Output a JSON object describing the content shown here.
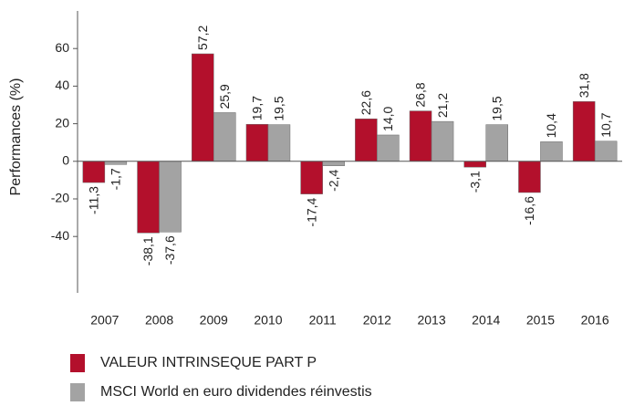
{
  "chart_data": {
    "type": "bar",
    "ylabel": "Performances (%)",
    "categories": [
      "2007",
      "2008",
      "2009",
      "2010",
      "2011",
      "2012",
      "2013",
      "2014",
      "2015",
      "2016"
    ],
    "series": [
      {
        "name": "VALEUR INTRINSEQUE  PART P",
        "color": "#b3102c",
        "values": [
          -11.3,
          -38.1,
          57.2,
          19.7,
          -17.4,
          22.6,
          26.8,
          -3.1,
          -16.6,
          31.8
        ],
        "value_labels": [
          "-11,3",
          "-38,1",
          "57,2",
          "19,7",
          "-17,4",
          "22,6",
          "26,8",
          "-3,1",
          "-16,6",
          "31,8"
        ]
      },
      {
        "name": "MSCI World en euro dividendes réinvestis",
        "color": "#a3a3a3",
        "values": [
          -1.7,
          -37.6,
          25.9,
          19.5,
          -2.4,
          14.0,
          21.2,
          19.5,
          10.4,
          10.7
        ],
        "value_labels": [
          "-1,7",
          "-37,6",
          "25,9",
          "19,5",
          "-2,4",
          "14,0",
          "21,2",
          "19,5",
          "10,4",
          "10,7"
        ]
      }
    ],
    "ylim": [
      -70,
      80
    ],
    "yticks": [
      -40,
      -20,
      0,
      20,
      40,
      60
    ],
    "grid": false
  }
}
